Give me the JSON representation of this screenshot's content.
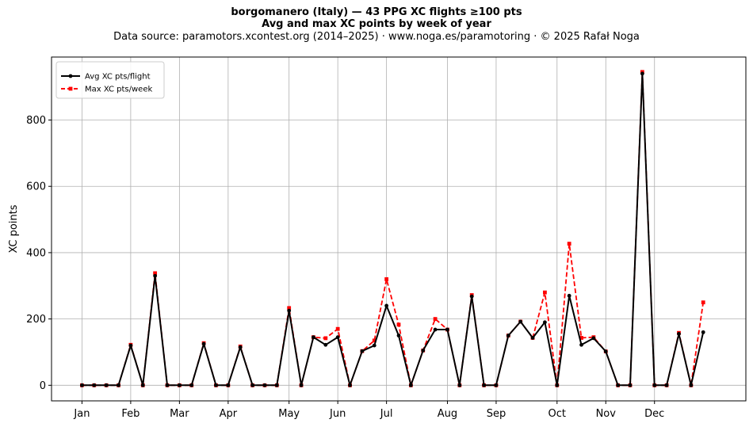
{
  "header": {
    "title1": "borgomanero (Italy)  —  43 PPG XC flights ≥100 pts",
    "title2": "Avg and max XC points by week of year",
    "source": "Data source: paramotors.xcontest.org (2014–2025)  ·  www.noga.es/paramotoring  ·  © 2025 Rafał Noga"
  },
  "colors": {
    "avg": "#000000",
    "max": "#ff0000",
    "grid": "#b0b0b0"
  },
  "chart_data": {
    "type": "line",
    "title": "borgomanero (Italy)  —  43 PPG XC flights ≥100 pts",
    "subtitle": "Avg and max XC points by week of year",
    "xlabel": "",
    "ylabel": "XC points",
    "x_ticks": [
      {
        "label": "Jan",
        "week": 1
      },
      {
        "label": "Feb",
        "week": 5
      },
      {
        "label": "Mar",
        "week": 9
      },
      {
        "label": "Apr",
        "week": 13
      },
      {
        "label": "May",
        "week": 18
      },
      {
        "label": "Jun",
        "week": 22
      },
      {
        "label": "Jul",
        "week": 26
      },
      {
        "label": "Aug",
        "week": 31
      },
      {
        "label": "Sep",
        "week": 35
      },
      {
        "label": "Oct",
        "week": 40
      },
      {
        "label": "Nov",
        "week": 44
      },
      {
        "label": "Dec",
        "week": 48
      }
    ],
    "y_ticks": [
      0,
      200,
      400,
      600,
      800
    ],
    "xlim": [
      -1.5,
      55.5
    ],
    "ylim": [
      -47,
      990
    ],
    "grid": true,
    "legend_position": "top-left",
    "x": [
      1,
      2,
      3,
      4,
      5,
      6,
      7,
      8,
      9,
      10,
      11,
      12,
      13,
      14,
      15,
      16,
      17,
      18,
      19,
      20,
      21,
      22,
      23,
      24,
      25,
      26,
      27,
      28,
      29,
      30,
      31,
      32,
      33,
      34,
      35,
      36,
      37,
      38,
      39,
      40,
      41,
      42,
      43,
      44,
      45,
      46,
      47,
      48,
      49,
      50,
      51,
      52
    ],
    "series": [
      {
        "name": "Avg XC pts/flight",
        "color": "#000000",
        "style": "solid",
        "marker": "circle",
        "values": [
          0,
          0,
          0,
          0,
          120,
          0,
          330,
          0,
          0,
          0,
          125,
          0,
          0,
          115,
          0,
          0,
          0,
          225,
          0,
          145,
          122,
          145,
          0,
          103,
          120,
          240,
          150,
          0,
          105,
          168,
          168,
          0,
          268,
          0,
          0,
          150,
          192,
          143,
          190,
          0,
          270,
          122,
          142,
          102,
          0,
          0,
          940,
          0,
          0,
          155,
          0,
          160
        ]
      },
      {
        "name": "Max XC pts/week",
        "color": "#ff0000",
        "style": "dashed",
        "marker": "square",
        "values": [
          0,
          0,
          0,
          0,
          122,
          0,
          338,
          0,
          0,
          0,
          127,
          0,
          0,
          117,
          0,
          0,
          0,
          233,
          0,
          145,
          142,
          170,
          0,
          103,
          135,
          320,
          183,
          0,
          105,
          200,
          168,
          0,
          272,
          0,
          0,
          150,
          192,
          143,
          280,
          0,
          427,
          143,
          145,
          102,
          0,
          0,
          945,
          0,
          0,
          158,
          0,
          250
        ]
      }
    ]
  }
}
